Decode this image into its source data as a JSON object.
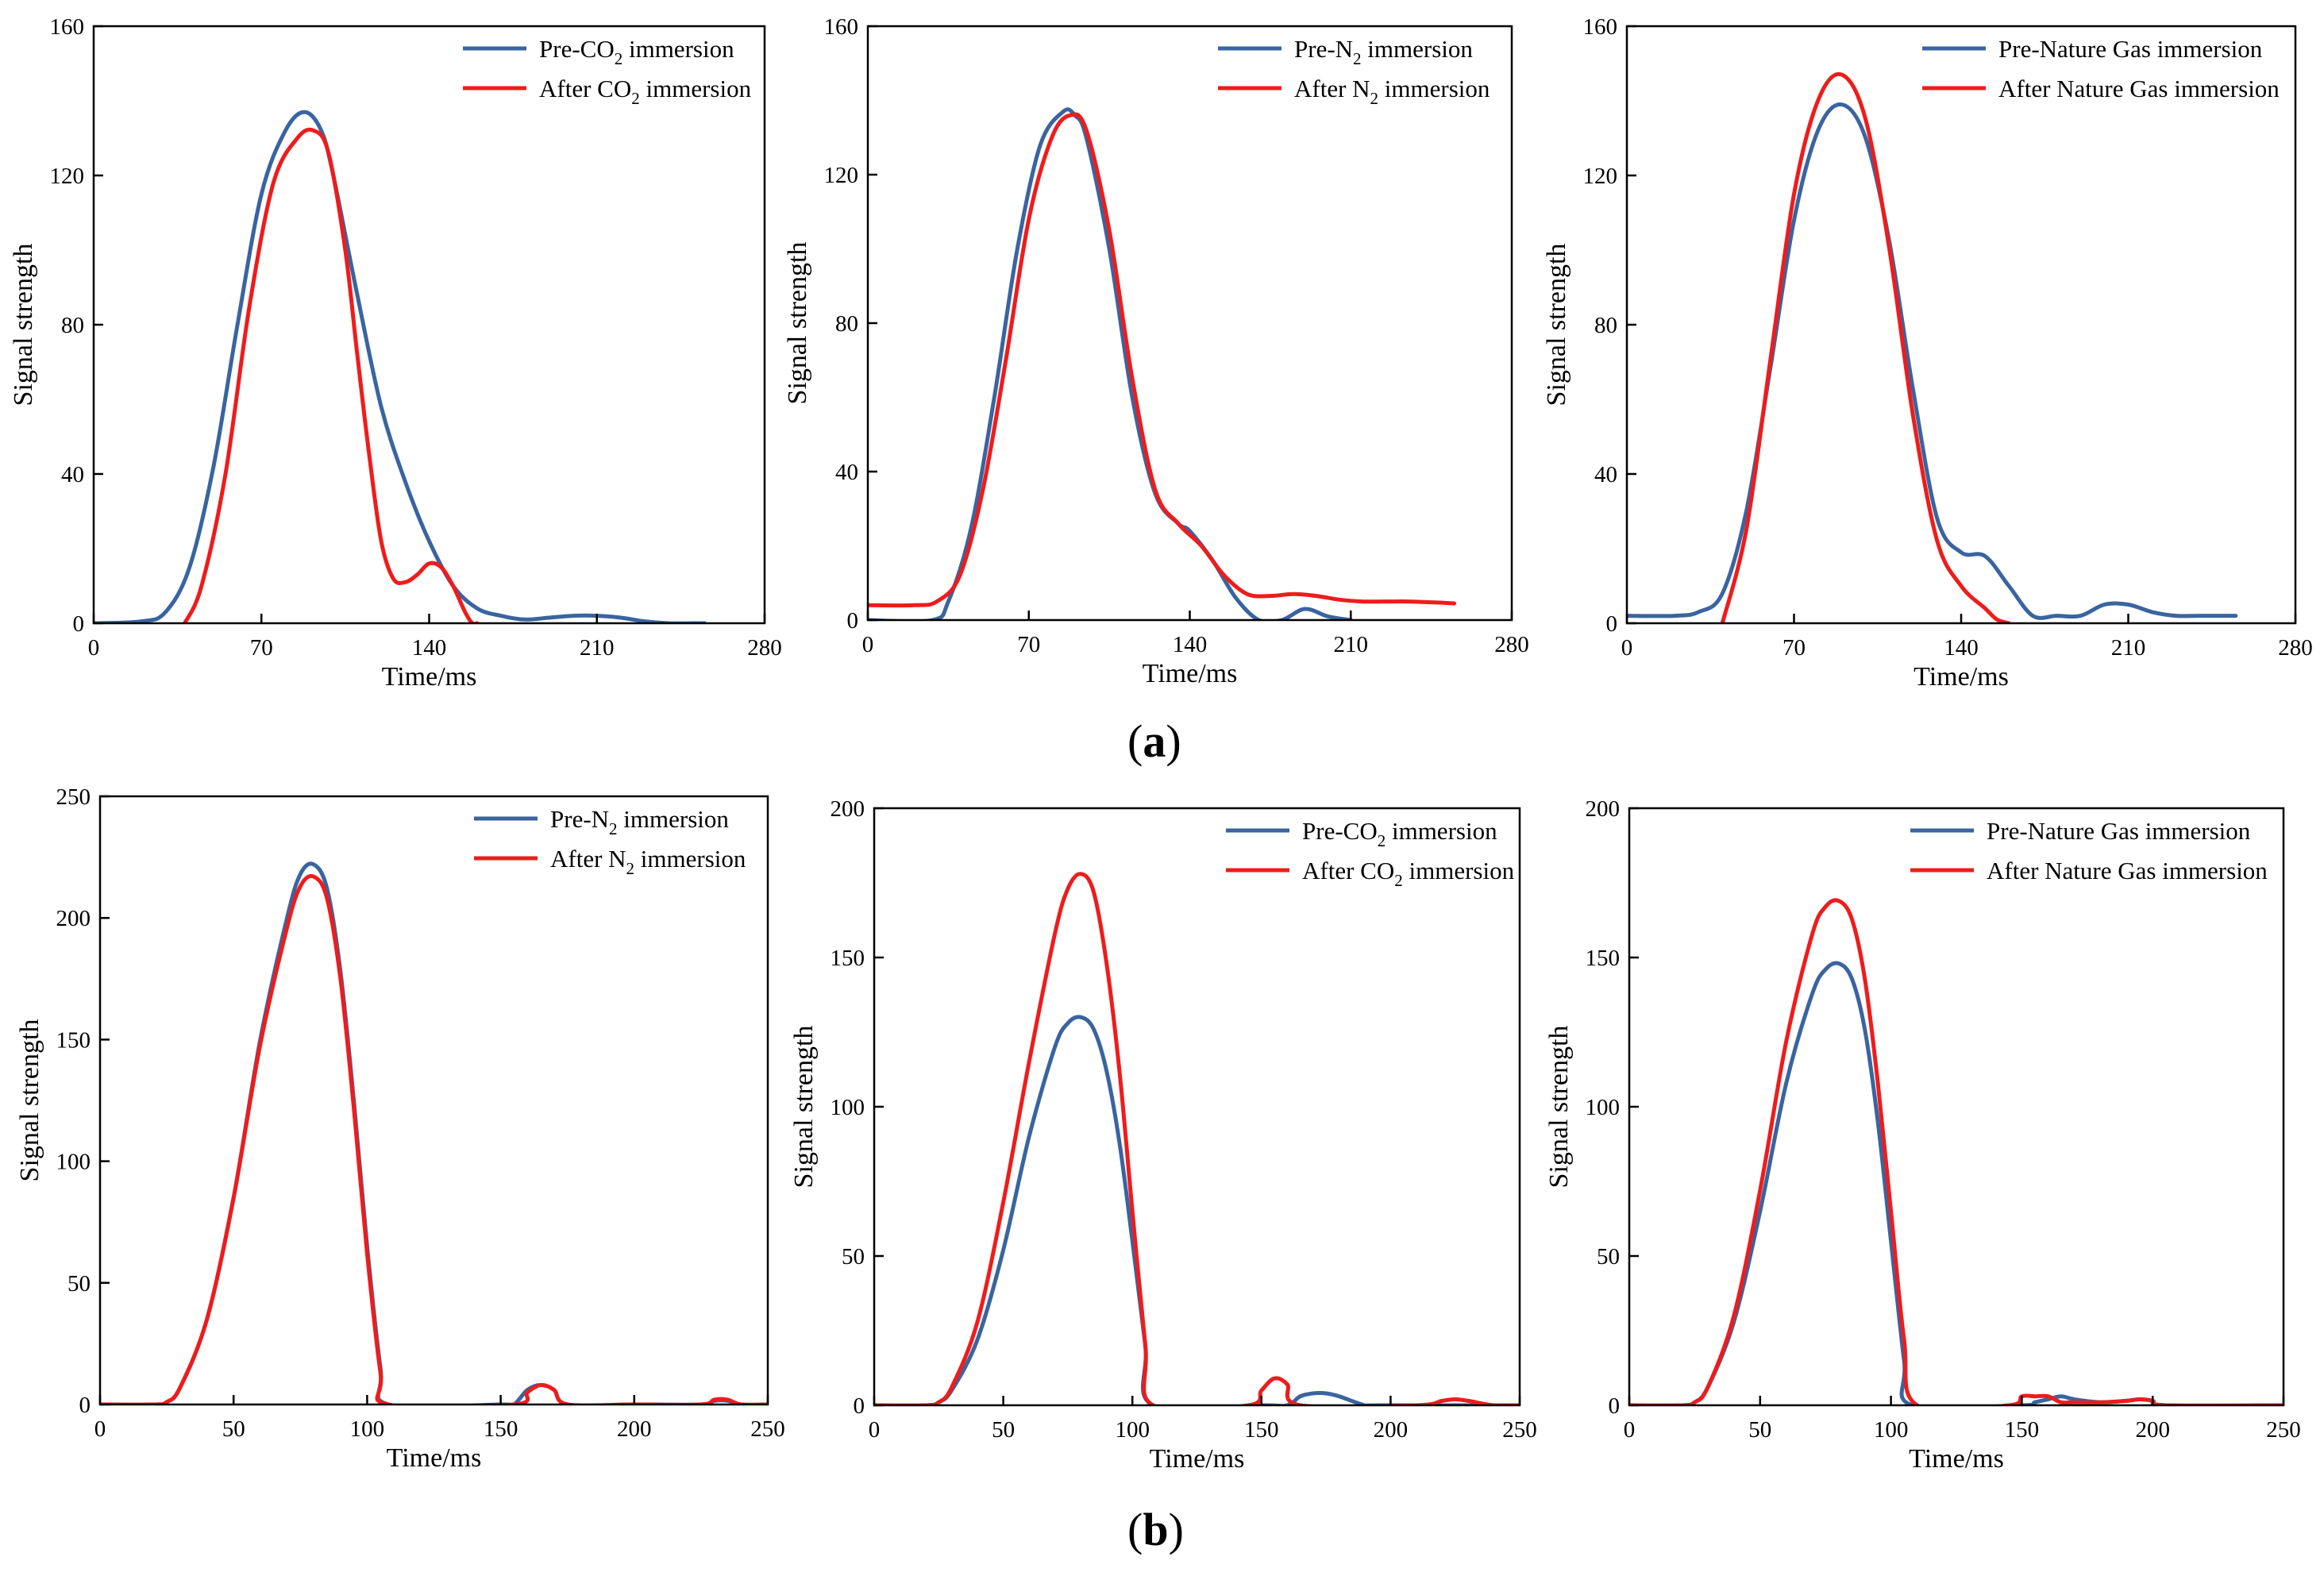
{
  "colors": {
    "pre": "#3a64a0",
    "after": "#ee1c1c",
    "axis": "#000000"
  },
  "labels": {
    "a": "a",
    "b": "b"
  },
  "chart_data": [
    {
      "id": "a1",
      "type": "line",
      "title": "",
      "xlabel": "Time/ms",
      "ylabel": "Signal strength",
      "xlim": [
        0,
        280
      ],
      "ylim": [
        0,
        160
      ],
      "xticks": [
        0,
        70,
        140,
        210,
        280
      ],
      "yticks": [
        0,
        40,
        80,
        120,
        160
      ],
      "legend": "top-right",
      "series": [
        {
          "name": "Pre-CO2 immersion",
          "legend_prefix": "Pre-CO",
          "legend_sub": "2",
          "legend_suffix": " immersion",
          "color": "#3a64a0",
          "x": [
            0,
            20,
            30,
            40,
            50,
            60,
            70,
            80,
            88,
            95,
            100,
            110,
            120,
            130,
            140,
            150,
            160,
            170,
            180,
            190,
            200,
            210,
            220,
            230,
            240,
            250,
            255
          ],
          "y": [
            0,
            0.5,
            3,
            15,
            42,
            80,
            115,
            132,
            137,
            132,
            120,
            88,
            58,
            38,
            22,
            10,
            4,
            2,
            1,
            1.5,
            2,
            2,
            1.5,
            0.5,
            0,
            0,
            0
          ]
        },
        {
          "name": "After CO2 immersion",
          "legend_prefix": "After CO",
          "legend_sub": "2",
          "legend_suffix": " immersion",
          "color": "#ee1c1c",
          "x": [
            38,
            45,
            55,
            65,
            75,
            85,
            92,
            98,
            105,
            110,
            115,
            120,
            125,
            130,
            135,
            140,
            145,
            150,
            155,
            158,
            160
          ],
          "y": [
            0,
            10,
            40,
            85,
            118,
            130,
            132,
            126,
            100,
            72,
            45,
            22,
            12,
            11,
            13,
            16,
            15,
            10,
            3,
            0,
            0
          ]
        }
      ]
    },
    {
      "id": "a2",
      "type": "line",
      "title": "",
      "xlabel": "Time/ms",
      "ylabel": "Signal strength",
      "xlim": [
        0,
        280
      ],
      "ylim": [
        0,
        160
      ],
      "xticks": [
        0,
        70,
        140,
        210,
        280
      ],
      "yticks": [
        0,
        40,
        80,
        120,
        160
      ],
      "legend": "top-right",
      "series": [
        {
          "name": "Pre-N2 immersion",
          "legend_prefix": "Pre-N",
          "legend_sub": "2",
          "legend_suffix": " immersion",
          "color": "#3a64a0",
          "x": [
            0,
            28,
            35,
            45,
            55,
            65,
            75,
            85,
            90,
            95,
            105,
            115,
            125,
            135,
            140,
            150,
            160,
            170,
            180,
            190,
            200,
            210
          ],
          "y": [
            0,
            0,
            5,
            25,
            60,
            100,
            128,
            137,
            136,
            130,
            100,
            60,
            34,
            26,
            24,
            16,
            6,
            0,
            0,
            3,
            1,
            0
          ]
        },
        {
          "name": "After N2 immersion",
          "legend_prefix": "After N",
          "legend_sub": "2",
          "legend_suffix": " immersion",
          "color": "#ee1c1c",
          "x": [
            0,
            20,
            30,
            40,
            50,
            60,
            70,
            80,
            88,
            95,
            105,
            115,
            125,
            135,
            145,
            155,
            165,
            175,
            185,
            195,
            205,
            215,
            225,
            235,
            245,
            255
          ],
          "y": [
            4,
            4,
            5,
            12,
            35,
            70,
            108,
            130,
            136,
            132,
            105,
            65,
            35,
            26,
            20,
            12,
            7,
            6.5,
            7,
            6.5,
            5.5,
            5,
            5,
            5,
            4.8,
            4.5
          ]
        }
      ]
    },
    {
      "id": "a3",
      "type": "line",
      "title": "",
      "xlabel": "Time/ms",
      "ylabel": "Signal strength",
      "xlim": [
        0,
        280
      ],
      "ylim": [
        0,
        160
      ],
      "xticks": [
        0,
        70,
        140,
        210,
        280
      ],
      "yticks": [
        0,
        40,
        80,
        120,
        160
      ],
      "legend": "top-right",
      "series": [
        {
          "name": "Pre-Nature Gas immersion",
          "legend_prefix": "Pre-Nature Gas immersion",
          "legend_sub": "",
          "legend_suffix": "",
          "color": "#3a64a0",
          "x": [
            0,
            20,
            30,
            40,
            50,
            60,
            70,
            80,
            90,
            100,
            110,
            120,
            130,
            140,
            150,
            160,
            170,
            180,
            190,
            200,
            210,
            220,
            230,
            240,
            255
          ],
          "y": [
            2,
            2,
            3,
            8,
            30,
            68,
            108,
            132,
            139,
            130,
            102,
            62,
            28,
            19,
            18,
            10,
            2,
            2,
            2,
            5,
            5,
            3,
            2,
            2,
            2
          ]
        },
        {
          "name": "After Nature Gas immersion",
          "legend_prefix": "After Nature Gas immersion",
          "legend_sub": "",
          "legend_suffix": "",
          "color": "#ee1c1c",
          "x": [
            40,
            50,
            60,
            70,
            80,
            90,
            100,
            110,
            120,
            130,
            140,
            150,
            155,
            160
          ],
          "y": [
            0,
            25,
            70,
            115,
            140,
            147,
            135,
            100,
            55,
            22,
            10,
            4,
            1,
            0
          ]
        }
      ]
    },
    {
      "id": "b1",
      "type": "line",
      "title": "",
      "xlabel": "Time/ms",
      "ylabel": "Signal strength",
      "xlim": [
        0,
        250
      ],
      "ylim": [
        0,
        250
      ],
      "xticks": [
        0,
        50,
        100,
        150,
        200,
        250
      ],
      "yticks": [
        0,
        50,
        100,
        150,
        200,
        250
      ],
      "legend": "top-right",
      "series": [
        {
          "name": "Pre-N2 immersion",
          "legend_prefix": "Pre-N",
          "legend_sub": "2",
          "legend_suffix": " immersion",
          "color": "#3a64a0",
          "x": [
            0,
            20,
            25,
            30,
            40,
            50,
            60,
            70,
            75,
            80,
            85,
            90,
            95,
            100,
            105,
            108,
            150,
            155,
            160,
            165,
            170,
            175,
            200,
            225,
            230,
            235,
            240,
            250
          ],
          "y": [
            0,
            0,
            1,
            7,
            35,
            85,
            150,
            200,
            218,
            222,
            212,
            178,
            125,
            65,
            15,
            0,
            0,
            0,
            6,
            8,
            6,
            0,
            0,
            0,
            1.5,
            1.5,
            0,
            0
          ]
        },
        {
          "name": "After N2 immersion",
          "legend_prefix": "After N",
          "legend_sub": "2",
          "legend_suffix": " immersion",
          "color": "#ee1c1c",
          "x": [
            0,
            20,
            25,
            30,
            40,
            50,
            60,
            70,
            75,
            80,
            85,
            90,
            95,
            100,
            105,
            108,
            155,
            160,
            165,
            170,
            175,
            200,
            225,
            230,
            235,
            240,
            250
          ],
          "y": [
            0,
            0,
            1,
            7,
            35,
            85,
            148,
            196,
            213,
            217,
            208,
            175,
            122,
            62,
            13,
            0,
            0,
            5,
            8,
            6,
            0,
            0,
            0,
            2,
            2,
            0,
            0
          ]
        }
      ]
    },
    {
      "id": "b2",
      "type": "line",
      "title": "",
      "xlabel": "Time/ms",
      "ylabel": "Signal strength",
      "xlim": [
        0,
        250
      ],
      "ylim": [
        0,
        200
      ],
      "xticks": [
        0,
        50,
        100,
        150,
        200,
        250
      ],
      "yticks": [
        0,
        50,
        100,
        150,
        200
      ],
      "legend": "top-right",
      "series": [
        {
          "name": "Pre-CO2 immersion",
          "legend_prefix": "Pre-CO",
          "legend_sub": "2",
          "legend_suffix": " immersion",
          "color": "#3a64a0",
          "x": [
            0,
            20,
            25,
            30,
            40,
            50,
            60,
            70,
            75,
            80,
            85,
            90,
            95,
            100,
            105,
            108,
            150,
            160,
            165,
            170,
            175,
            180,
            190,
            195,
            250
          ],
          "y": [
            0,
            0,
            1,
            5,
            22,
            52,
            90,
            120,
            128,
            130,
            126,
            112,
            88,
            55,
            20,
            0,
            0,
            0,
            3,
            4,
            4,
            3,
            0,
            0,
            0
          ]
        },
        {
          "name": "After CO2 immersion",
          "legend_prefix": "After CO",
          "legend_sub": "2",
          "legend_suffix": " immersion",
          "color": "#ee1c1c",
          "x": [
            0,
            20,
            25,
            30,
            40,
            50,
            60,
            70,
            75,
            80,
            85,
            90,
            95,
            100,
            105,
            108,
            145,
            150,
            155,
            160,
            165,
            210,
            220,
            225,
            230,
            240,
            250
          ],
          "y": [
            0,
            0,
            1,
            6,
            28,
            68,
            115,
            158,
            173,
            178,
            172,
            148,
            112,
            65,
            20,
            0,
            0,
            5,
            9,
            7,
            0,
            0,
            1.5,
            2,
            1.5,
            0,
            0
          ]
        }
      ]
    },
    {
      "id": "b3",
      "type": "line",
      "title": "",
      "xlabel": "Time/ms",
      "ylabel": "Signal strength",
      "xlim": [
        0,
        250
      ],
      "ylim": [
        0,
        200
      ],
      "xticks": [
        0,
        50,
        100,
        150,
        200,
        250
      ],
      "yticks": [
        0,
        50,
        100,
        150,
        200
      ],
      "legend": "top-right",
      "series": [
        {
          "name": "Pre-Nature Gas immersion",
          "legend_prefix": "Pre-Nature Gas immersion",
          "legend_sub": "",
          "legend_suffix": "",
          "color": "#3a64a0",
          "x": [
            0,
            20,
            25,
            30,
            40,
            50,
            60,
            70,
            75,
            80,
            85,
            90,
            95,
            100,
            105,
            108,
            150,
            155,
            160,
            165,
            170,
            180,
            190,
            195,
            200,
            205,
            250
          ],
          "y": [
            0,
            0,
            1,
            6,
            28,
            65,
            108,
            138,
            146,
            148,
            143,
            126,
            95,
            55,
            15,
            0,
            0,
            1,
            2,
            3,
            2,
            1,
            1.5,
            2,
            1.5,
            0,
            0
          ]
        },
        {
          "name": "After Nature Gas immersion",
          "legend_prefix": "After Nature Gas immersion",
          "legend_sub": "",
          "legend_suffix": "",
          "color": "#ee1c1c",
          "x": [
            0,
            20,
            25,
            30,
            40,
            50,
            60,
            70,
            75,
            80,
            85,
            90,
            95,
            100,
            105,
            110,
            145,
            150,
            155,
            160,
            165,
            170,
            180,
            190,
            195,
            200,
            205,
            250
          ],
          "y": [
            0,
            0,
            1,
            6,
            30,
            72,
            122,
            158,
            167,
            169,
            163,
            143,
            108,
            65,
            22,
            0,
            0,
            3,
            3,
            3,
            1,
            1,
            1,
            1.5,
            2,
            1.5,
            0,
            0
          ]
        }
      ]
    }
  ]
}
